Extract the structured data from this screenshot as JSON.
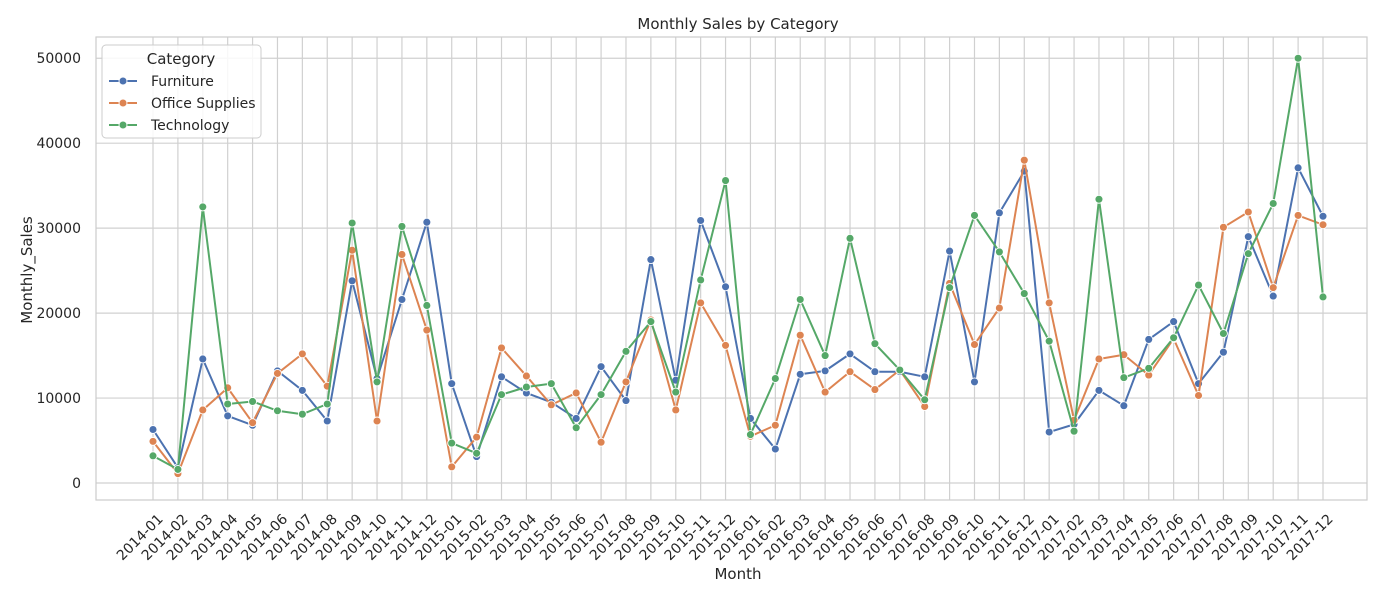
{
  "chart_data": {
    "type": "line",
    "title": "Monthly Sales by Category",
    "xlabel": "Month",
    "ylabel": "Monthly_Sales",
    "ylim": [
      -2000,
      52500
    ],
    "yticks": [
      0,
      10000,
      20000,
      30000,
      40000,
      50000
    ],
    "grid": true,
    "legend": {
      "title": "Category",
      "placement": "top-left"
    },
    "categories": [
      "2014-01",
      "2014-02",
      "2014-03",
      "2014-04",
      "2014-05",
      "2014-06",
      "2014-07",
      "2014-08",
      "2014-09",
      "2014-10",
      "2014-11",
      "2014-12",
      "2015-01",
      "2015-02",
      "2015-03",
      "2015-04",
      "2015-05",
      "2015-06",
      "2015-07",
      "2015-08",
      "2015-09",
      "2015-10",
      "2015-11",
      "2015-12",
      "2016-01",
      "2016-02",
      "2016-03",
      "2016-04",
      "2016-05",
      "2016-06",
      "2016-07",
      "2016-08",
      "2016-09",
      "2016-10",
      "2016-11",
      "2016-12",
      "2017-01",
      "2017-02",
      "2017-03",
      "2017-04",
      "2017-05",
      "2017-06",
      "2017-07",
      "2017-08",
      "2017-09",
      "2017-10",
      "2017-11",
      "2017-12"
    ],
    "series": [
      {
        "name": "Furniture",
        "color": "#4c72b0",
        "values": [
          6300,
          1800,
          14600,
          7900,
          6800,
          13200,
          10900,
          7300,
          23800,
          12300,
          21600,
          30700,
          11700,
          3100,
          12500,
          10600,
          9500,
          7600,
          13700,
          9700,
          26300,
          12100,
          30900,
          23100,
          7600,
          4000,
          12800,
          13200,
          15200,
          13100,
          13100,
          12500,
          27300,
          11900,
          31800,
          36700,
          6000,
          6900,
          10900,
          9100,
          16900,
          19000,
          11700,
          15400,
          29000,
          22000,
          37100,
          31400
        ]
      },
      {
        "name": "Office Supplies",
        "color": "#dd8452",
        "values": [
          4900,
          1100,
          8600,
          11200,
          7100,
          12900,
          15200,
          11400,
          27400,
          7300,
          26900,
          18000,
          1900,
          5400,
          15900,
          12600,
          9200,
          10600,
          4800,
          11900,
          19200,
          8600,
          21200,
          16200,
          5500,
          6800,
          17400,
          10700,
          13100,
          11000,
          13300,
          9000,
          23500,
          16300,
          20600,
          38000,
          21200,
          7400,
          14600,
          15100,
          12700,
          17000,
          10300,
          30100,
          31900,
          23000,
          31500,
          30400
        ]
      },
      {
        "name": "Technology",
        "color": "#55a868",
        "values": [
          3200,
          1600,
          32500,
          9300,
          9600,
          8500,
          8100,
          9300,
          30600,
          11900,
          30200,
          20900,
          4700,
          3500,
          10400,
          11300,
          11700,
          6500,
          10400,
          15500,
          19000,
          10700,
          23900,
          35600,
          5700,
          12300,
          21600,
          15000,
          28800,
          16400,
          13300,
          9800,
          23000,
          31500,
          27200,
          22300,
          16700,
          6100,
          33400,
          12400,
          13500,
          17100,
          23300,
          17600,
          27000,
          32900,
          50000,
          21900
        ]
      }
    ]
  }
}
